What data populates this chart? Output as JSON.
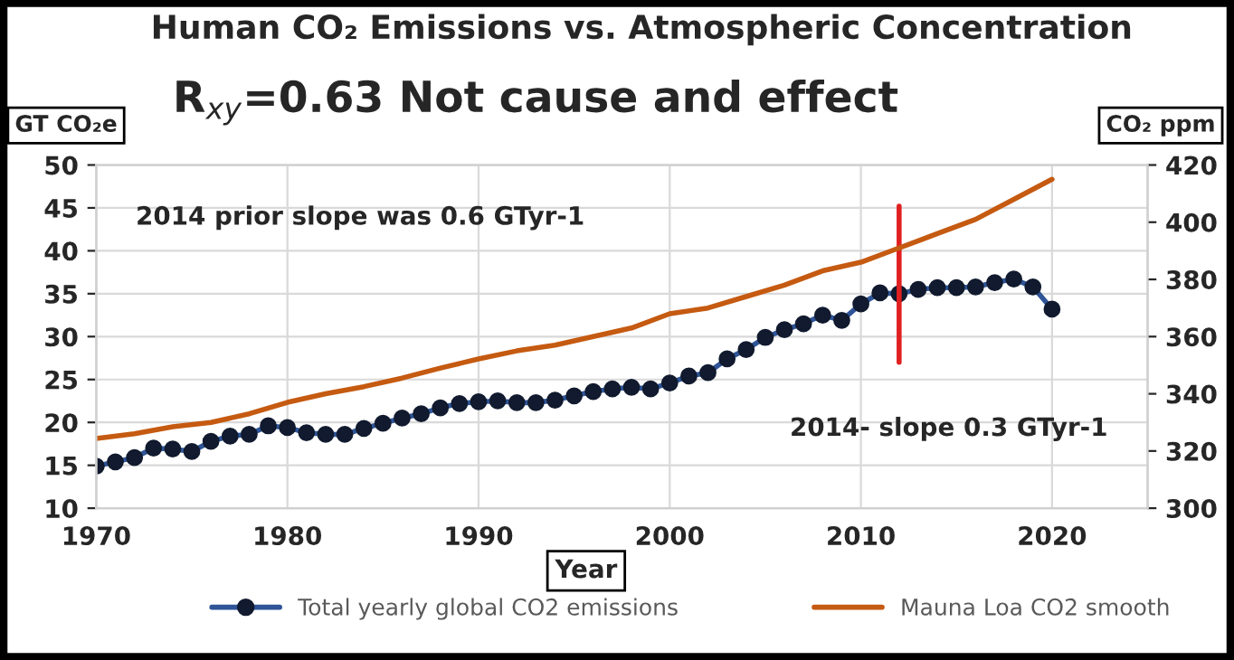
{
  "chart_data": {
    "type": "line",
    "title": "Human CO₂ Emissions vs. Atmospheric Concentration",
    "xlabel": "Year",
    "ylabel": "GT CO₂e",
    "y2label": "CO₂ ppm",
    "annotations": [
      "R$_{xy}$=0.63 Not cause and effect",
      "2014 prior slope was 0.6 GTyr-1",
      "2014- slope 0.3 GTyr-1"
    ],
    "xlim": [
      1970,
      2025
    ],
    "xticks": [
      1970,
      1980,
      1990,
      2000,
      2010,
      2020
    ],
    "ylim": [
      10,
      50
    ],
    "yticks": [
      10,
      15,
      20,
      25,
      30,
      35,
      40,
      45,
      50
    ],
    "y2lim": [
      300,
      420
    ],
    "y2ticks": [
      300,
      320,
      340,
      360,
      380,
      400,
      420
    ],
    "grid": true,
    "legend": "bottom",
    "series": [
      {
        "name": "Total yearly global CO2 emissions",
        "color": "#2f5597",
        "marker": "circle",
        "x": [
          1970,
          1971,
          1972,
          1973,
          1974,
          1975,
          1976,
          1977,
          1978,
          1979,
          1980,
          1981,
          1982,
          1983,
          1984,
          1985,
          1986,
          1987,
          1988,
          1989,
          1990,
          1991,
          1992,
          1993,
          1994,
          1995,
          1996,
          1997,
          1998,
          1999,
          2000,
          2001,
          2002,
          2003,
          2004,
          2005,
          2006,
          2007,
          2008,
          2009,
          2010,
          2011,
          2012,
          2013,
          2014,
          2015,
          2016,
          2017,
          2018,
          2019,
          2020
        ],
        "values": [
          14.9,
          15.4,
          15.9,
          17.0,
          16.9,
          16.6,
          17.8,
          18.4,
          18.6,
          19.6,
          19.4,
          18.8,
          18.6,
          18.6,
          19.3,
          19.9,
          20.5,
          21.0,
          21.7,
          22.2,
          22.4,
          22.5,
          22.3,
          22.3,
          22.6,
          23.1,
          23.6,
          23.9,
          24.1,
          23.9,
          24.6,
          25.4,
          25.8,
          27.4,
          28.5,
          29.9,
          30.8,
          31.5,
          32.5,
          31.9,
          33.8,
          35.1,
          35.0,
          35.5,
          35.7,
          35.7,
          35.8,
          36.3,
          36.7,
          35.8,
          33.2
        ]
      },
      {
        "name": "Mauna Loa CO2 smooth",
        "color": "#c55a11",
        "marker": "none",
        "axis": "y2",
        "x": [
          1970,
          1972,
          1974,
          1976,
          1978,
          1980,
          1982,
          1984,
          1986,
          1988,
          1990,
          1992,
          1994,
          1996,
          1998,
          2000,
          2002,
          2004,
          2006,
          2008,
          2010,
          2012,
          2014,
          2016,
          2018,
          2020
        ],
        "values": [
          324.4,
          326,
          328.5,
          330,
          333,
          337,
          340,
          342.5,
          345.5,
          349,
          352.2,
          355,
          357,
          360,
          363,
          368,
          370,
          374,
          378,
          383,
          386,
          391,
          396,
          401,
          408,
          415
        ]
      },
      {
        "color": "#e02020",
        "marker": "none",
        "x": [
          2012,
          2012
        ],
        "values": [
          27,
          45.2
        ]
      }
    ]
  }
}
